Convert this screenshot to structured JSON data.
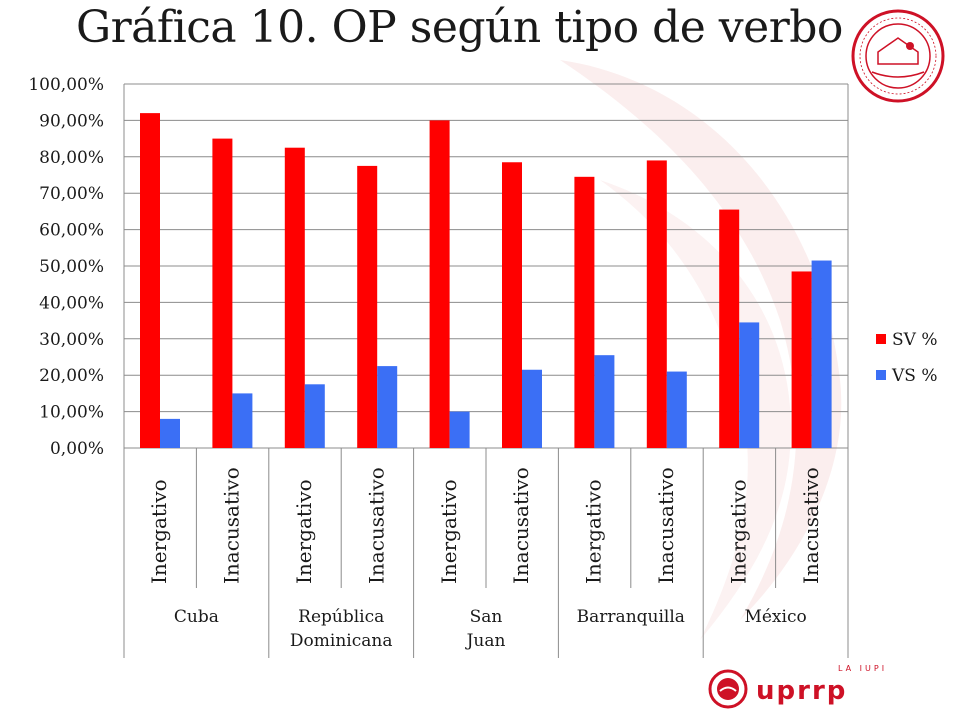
{
  "slide": {
    "title": "Gráfica 10. OP según tipo de verbo",
    "footer": {
      "brand": "uprrp",
      "tagline": "LA IUPI"
    }
  },
  "colors": {
    "sv": "#ff0000",
    "vs": "#3b6ff5",
    "grid": "#8c8c8c",
    "brand_red": "#ce1126"
  },
  "chart_data": {
    "type": "bar",
    "title": "",
    "ylim": [
      0,
      100
    ],
    "y_ticks": [
      "0,00%",
      "10,00%",
      "20,00%",
      "30,00%",
      "40,00%",
      "50,00%",
      "60,00%",
      "70,00%",
      "80,00%",
      "90,00%",
      "100,00%"
    ],
    "categories": [
      "Inergativo",
      "Inacusativo",
      "Inergativo",
      "Inacusativo",
      "Inergativo",
      "Inacusativo",
      "Inergativo",
      "Inacusativo",
      "Inergativo",
      "Inacusativo"
    ],
    "groups": [
      {
        "label": "Cuba",
        "span": 2
      },
      {
        "label": "República Dominicana",
        "span": 2
      },
      {
        "label": "San Juan",
        "span": 2
      },
      {
        "label": "Barranquilla",
        "span": 2
      },
      {
        "label": "México",
        "span": 2
      }
    ],
    "series": [
      {
        "name": "SV %",
        "values": [
          92,
          85,
          82.5,
          77.5,
          90,
          78.5,
          74.5,
          79,
          65.5,
          48.5
        ]
      },
      {
        "name": "VS %",
        "values": [
          8,
          15,
          17.5,
          22.5,
          10,
          21.5,
          25.5,
          21,
          34.5,
          51.5
        ]
      }
    ],
    "legend_position": "right",
    "grid": true
  }
}
